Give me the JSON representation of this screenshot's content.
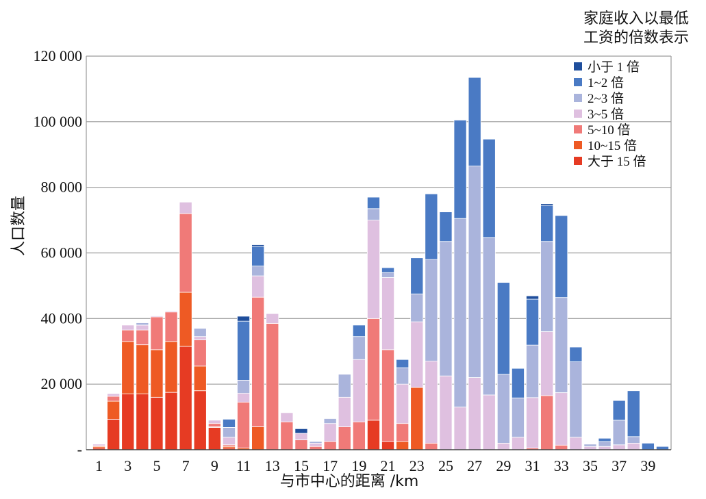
{
  "chart_data": {
    "type": "bar",
    "stacked": true,
    "title": "",
    "xlabel": "与市中心的距离 /km",
    "ylabel": "人口数量",
    "legend_title_lines": [
      "家庭收入以最低",
      "工资的倍数表示"
    ],
    "legend_position": "top-right",
    "grid": true,
    "ylim": [
      0,
      120000
    ],
    "yticks": [
      0,
      20000,
      40000,
      60000,
      80000,
      100000,
      120000
    ],
    "ytick_labels": [
      "-",
      "20 000",
      "40 000",
      "60 000",
      "80 000",
      "100 000",
      "120 000"
    ],
    "xtick_labels": [
      "1",
      "3",
      "5",
      "7",
      "9",
      "11",
      "13",
      "15",
      "17",
      "19",
      "21",
      "23",
      "25",
      "27",
      "29",
      "31",
      "33",
      "35",
      "37",
      "39"
    ],
    "categories": [
      1,
      2,
      3,
      4,
      5,
      6,
      7,
      8,
      9,
      10,
      11,
      12,
      13,
      14,
      15,
      16,
      17,
      18,
      19,
      20,
      21,
      22,
      23,
      24,
      25,
      26,
      27,
      28,
      29,
      30,
      31,
      32,
      33,
      34,
      35,
      36,
      37,
      38,
      39,
      40
    ],
    "series": [
      {
        "name": "小于 1 倍",
        "color": "#1f4e9c",
        "values": [
          0,
          0,
          0,
          0,
          0,
          0,
          0,
          0,
          0,
          0,
          1500,
          500,
          0,
          0,
          1400,
          0,
          0,
          0,
          0,
          0,
          0,
          0,
          0,
          0,
          0,
          0,
          0,
          0,
          0,
          0,
          1000,
          500,
          0,
          0,
          0,
          0,
          0,
          0,
          0,
          0
        ]
      },
      {
        "name": "1~2 倍",
        "color": "#4a7ac4",
        "values": [
          0,
          0,
          0,
          0,
          0,
          0,
          0,
          0,
          0,
          2500,
          18000,
          6000,
          0,
          0,
          0,
          0,
          0,
          0,
          3500,
          3500,
          1500,
          2500,
          11000,
          20000,
          9000,
          30000,
          27000,
          30000,
          28000,
          9000,
          14000,
          11000,
          25000,
          4500,
          0,
          1000,
          6000,
          14000,
          2000,
          1000
        ]
      },
      {
        "name": "2~3 倍",
        "color": "#aab4dc",
        "values": [
          0,
          0,
          0,
          700,
          0,
          0,
          0,
          2500,
          0,
          3000,
          4000,
          3000,
          0,
          0,
          0,
          500,
          1500,
          7000,
          7000,
          3500,
          1500,
          5000,
          8500,
          31000,
          41000,
          57500,
          64500,
          48000,
          21000,
          12000,
          16000,
          27500,
          29000,
          23000,
          700,
          1500,
          7500,
          2000,
          0,
          0
        ]
      },
      {
        "name": "3~5 倍",
        "color": "#dfc0e0",
        "values": [
          500,
          800,
          1500,
          1500,
          300,
          300,
          3500,
          1000,
          1000,
          2300,
          2700,
          6500,
          3000,
          2800,
          2000,
          1000,
          5500,
          9000,
          19000,
          30000,
          22000,
          12000,
          20000,
          25000,
          22500,
          13000,
          22000,
          16700,
          2000,
          3800,
          15400,
          19500,
          16000,
          3800,
          1000,
          1000,
          1500,
          2000,
          0,
          0
        ]
      },
      {
        "name": "5~10 倍",
        "color": "#f07a78",
        "values": [
          200,
          1500,
          3500,
          4500,
          10000,
          9000,
          24000,
          8000,
          1000,
          500,
          14000,
          39500,
          38500,
          8500,
          3000,
          1000,
          2500,
          7000,
          8500,
          31000,
          28000,
          5500,
          0,
          2000,
          0,
          0,
          0,
          0,
          0,
          0,
          500,
          16500,
          1400,
          0,
          0,
          0,
          0,
          0,
          0,
          0
        ]
      },
      {
        "name": "10~15 倍",
        "color": "#ee5a24",
        "values": [
          500,
          5500,
          16000,
          15000,
          14500,
          15500,
          16500,
          7500,
          200,
          500,
          500,
          7000,
          0,
          0,
          0,
          0,
          0,
          0,
          0,
          0,
          0,
          2500,
          19000,
          0,
          0,
          0,
          0,
          0,
          0,
          0,
          0,
          0,
          0,
          0,
          0,
          0,
          0,
          0,
          0,
          0
        ]
      },
      {
        "name": "大于 15 倍",
        "color": "#e63b23",
        "values": [
          500,
          9300,
          17000,
          17000,
          16000,
          17500,
          31500,
          18000,
          6800,
          500,
          0,
          0,
          0,
          0,
          0,
          0,
          0,
          0,
          0,
          9000,
          2500,
          0,
          0,
          0,
          0,
          0,
          0,
          0,
          0,
          0,
          0,
          0,
          0,
          0,
          0,
          0,
          0,
          0,
          0,
          0
        ]
      }
    ]
  }
}
